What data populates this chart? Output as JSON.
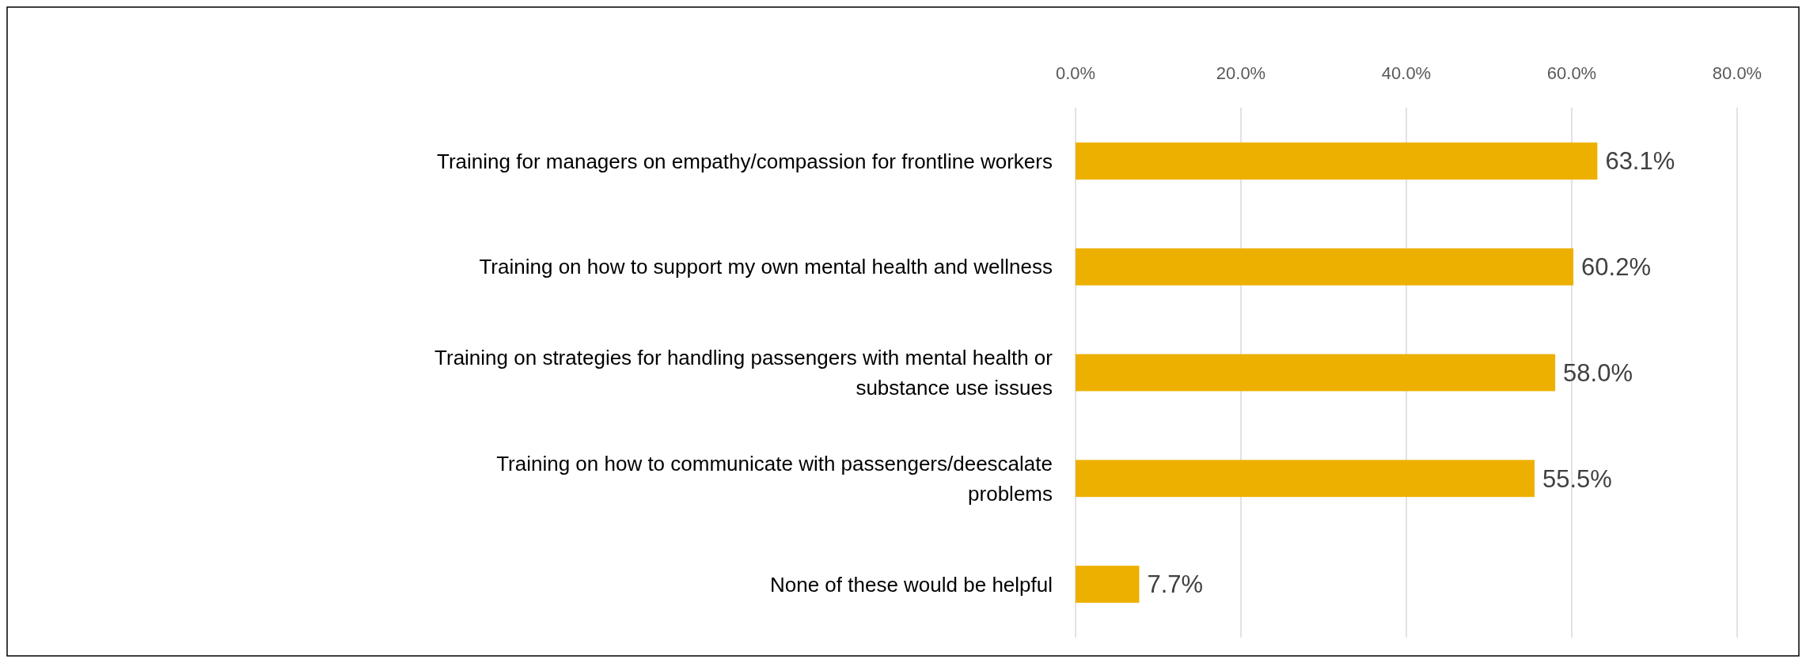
{
  "chart_data": {
    "type": "bar",
    "orientation": "horizontal",
    "categories": [
      "Training for managers on empathy/compassion for frontline workers",
      "Training on how to support my own mental health and wellness",
      "Training on strategies for handling passengers with mental health or substance use issues",
      "Training on how to communicate with passengers/deescalate problems",
      "None of these would be helpful"
    ],
    "values": [
      63.1,
      60.2,
      58.0,
      55.5,
      7.7
    ],
    "value_labels": [
      "63.1%",
      "60.2%",
      "58.0%",
      "55.5%",
      "7.7%"
    ],
    "color": "#edb000",
    "xlim": [
      0,
      80
    ],
    "xticks": [
      {
        "value": 0,
        "label": "0.0%"
      },
      {
        "value": 20,
        "label": "20.0%"
      },
      {
        "value": 40,
        "label": "40.0%"
      },
      {
        "value": 60,
        "label": "60.0%"
      },
      {
        "value": 80,
        "label": "80.0%"
      }
    ],
    "grid": "x"
  }
}
